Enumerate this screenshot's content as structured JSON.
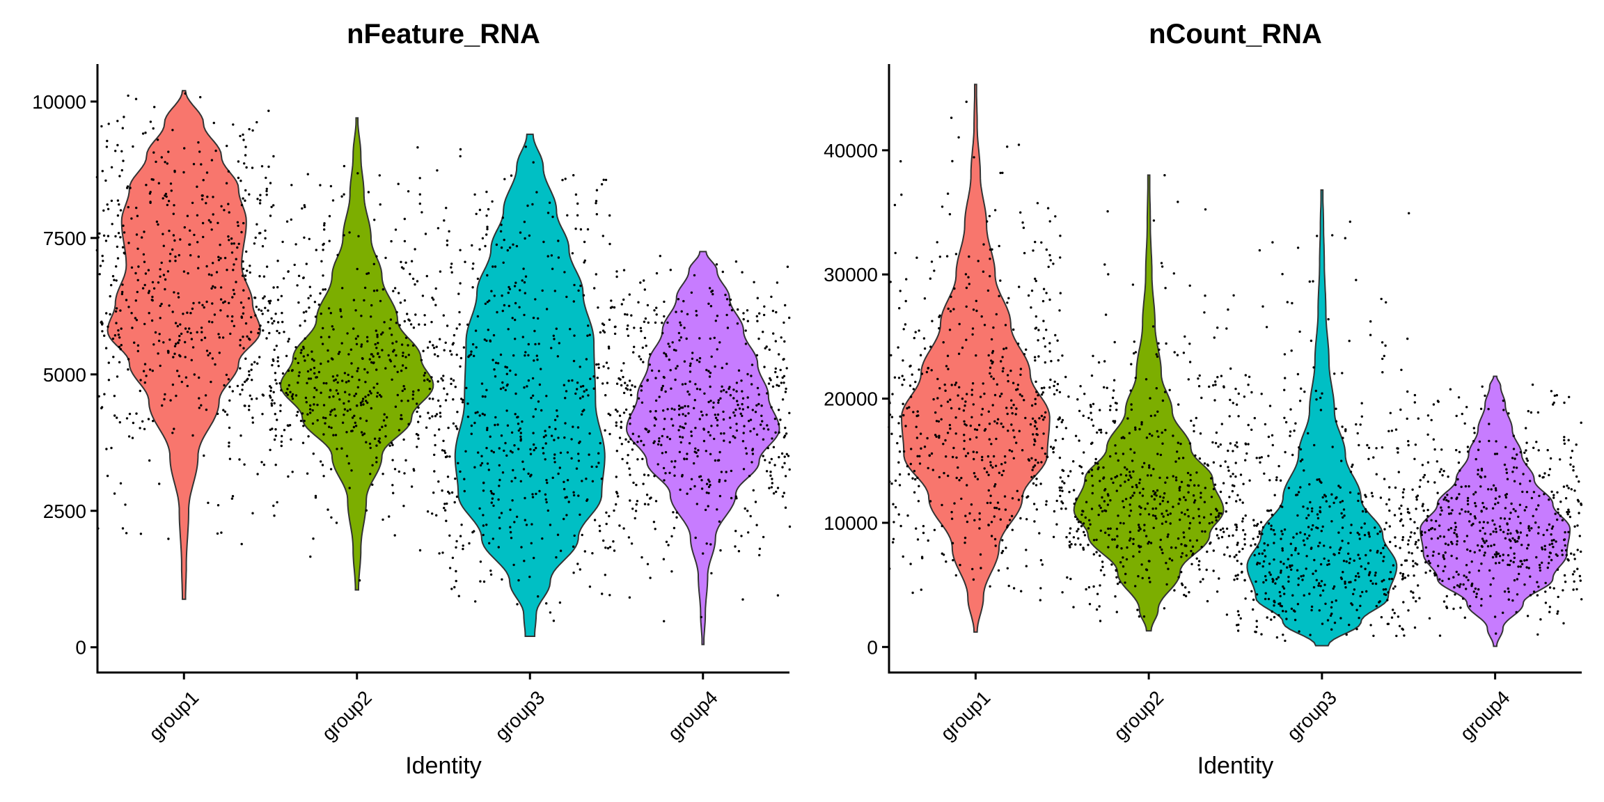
{
  "chart_data": [
    {
      "type": "violin",
      "title": "nFeature_RNA",
      "xlabel": "Identity",
      "ylabel": "",
      "categories": [
        "group1",
        "group2",
        "group3",
        "group4"
      ],
      "ylim": [
        -450,
        10700
      ],
      "yticks": [
        0,
        2500,
        5000,
        7500,
        10000
      ],
      "ytick_labels": [
        "0",
        "2500",
        "5000",
        "7500",
        "10000"
      ],
      "colors": [
        "#F8766D",
        "#7CAE00",
        "#00BFC4",
        "#C77CFF"
      ],
      "grid": false,
      "legend": "none",
      "series": [
        {
          "category": "group1",
          "min": 880,
          "max": 10200,
          "density": [
            [
              880,
              0.02
            ],
            [
              1500,
              0.03
            ],
            [
              2500,
              0.06
            ],
            [
              3500,
              0.18
            ],
            [
              4500,
              0.45
            ],
            [
              5200,
              0.7
            ],
            [
              5800,
              0.98
            ],
            [
              6300,
              0.88
            ],
            [
              7000,
              0.74
            ],
            [
              7800,
              0.8
            ],
            [
              8400,
              0.7
            ],
            [
              9000,
              0.48
            ],
            [
              9600,
              0.25
            ],
            [
              10200,
              0.02
            ]
          ]
        },
        {
          "category": "group2",
          "min": 1050,
          "max": 9700,
          "density": [
            [
              1050,
              0.02
            ],
            [
              1800,
              0.05
            ],
            [
              2700,
              0.12
            ],
            [
              3500,
              0.32
            ],
            [
              4200,
              0.7
            ],
            [
              4800,
              0.98
            ],
            [
              5300,
              0.82
            ],
            [
              6000,
              0.52
            ],
            [
              6800,
              0.32
            ],
            [
              7500,
              0.18
            ],
            [
              8300,
              0.09
            ],
            [
              9000,
              0.05
            ],
            [
              9700,
              0.01
            ]
          ]
        },
        {
          "category": "group3",
          "min": 200,
          "max": 9400,
          "density": [
            [
              200,
              0.06
            ],
            [
              600,
              0.08
            ],
            [
              1200,
              0.26
            ],
            [
              2000,
              0.62
            ],
            [
              2800,
              0.92
            ],
            [
              3500,
              0.96
            ],
            [
              4500,
              0.84
            ],
            [
              5600,
              0.82
            ],
            [
              6500,
              0.68
            ],
            [
              7300,
              0.5
            ],
            [
              8000,
              0.34
            ],
            [
              8800,
              0.17
            ],
            [
              9400,
              0.04
            ]
          ]
        },
        {
          "category": "group4",
          "min": 50,
          "max": 7250,
          "density": [
            [
              50,
              0.01
            ],
            [
              600,
              0.03
            ],
            [
              1300,
              0.06
            ],
            [
              2000,
              0.16
            ],
            [
              2800,
              0.42
            ],
            [
              3400,
              0.72
            ],
            [
              4000,
              0.98
            ],
            [
              4600,
              0.84
            ],
            [
              5200,
              0.7
            ],
            [
              5800,
              0.52
            ],
            [
              6400,
              0.34
            ],
            [
              6900,
              0.18
            ],
            [
              7250,
              0.04
            ]
          ]
        }
      ]
    },
    {
      "type": "violin",
      "title": "nCount_RNA",
      "xlabel": "Identity",
      "ylabel": "",
      "categories": [
        "group1",
        "group2",
        "group3",
        "group4"
      ],
      "ylim": [
        -2000,
        47000
      ],
      "yticks": [
        0,
        10000,
        20000,
        30000,
        40000
      ],
      "ytick_labels": [
        "0",
        "10000",
        "20000",
        "30000",
        "40000"
      ],
      "colors": [
        "#F8766D",
        "#7CAE00",
        "#00BFC4",
        "#C77CFF"
      ],
      "grid": false,
      "legend": "none",
      "series": [
        {
          "category": "group1",
          "min": 1200,
          "max": 45300,
          "density": [
            [
              1200,
              0.02
            ],
            [
              4000,
              0.1
            ],
            [
              8000,
              0.3
            ],
            [
              12000,
              0.6
            ],
            [
              15500,
              0.92
            ],
            [
              18500,
              0.95
            ],
            [
              22000,
              0.7
            ],
            [
              26000,
              0.45
            ],
            [
              30000,
              0.25
            ],
            [
              34000,
              0.14
            ],
            [
              38000,
              0.06
            ],
            [
              42000,
              0.02
            ],
            [
              45300,
              0.01
            ]
          ]
        },
        {
          "category": "group2",
          "min": 1300,
          "max": 38000,
          "density": [
            [
              1300,
              0.03
            ],
            [
              3000,
              0.12
            ],
            [
              6000,
              0.4
            ],
            [
              9000,
              0.78
            ],
            [
              11000,
              0.96
            ],
            [
              13500,
              0.82
            ],
            [
              16000,
              0.54
            ],
            [
              19000,
              0.3
            ],
            [
              22000,
              0.16
            ],
            [
              26000,
              0.08
            ],
            [
              30000,
              0.04
            ],
            [
              34000,
              0.02
            ],
            [
              38000,
              0.01
            ]
          ]
        },
        {
          "category": "group3",
          "min": 100,
          "max": 36800,
          "density": [
            [
              100,
              0.08
            ],
            [
              2000,
              0.5
            ],
            [
              4000,
              0.85
            ],
            [
              6500,
              0.96
            ],
            [
              9000,
              0.78
            ],
            [
              12000,
              0.5
            ],
            [
              15500,
              0.3
            ],
            [
              19000,
              0.16
            ],
            [
              23000,
              0.09
            ],
            [
              27000,
              0.05
            ],
            [
              31000,
              0.03
            ],
            [
              34000,
              0.02
            ],
            [
              36800,
              0.01
            ]
          ]
        },
        {
          "category": "group4",
          "min": 50,
          "max": 21800,
          "density": [
            [
              50,
              0.02
            ],
            [
              1500,
              0.1
            ],
            [
              3500,
              0.36
            ],
            [
              5500,
              0.74
            ],
            [
              7500,
              0.92
            ],
            [
              9500,
              0.96
            ],
            [
              11500,
              0.74
            ],
            [
              13500,
              0.5
            ],
            [
              15500,
              0.34
            ],
            [
              17500,
              0.22
            ],
            [
              19500,
              0.13
            ],
            [
              21000,
              0.07
            ],
            [
              21800,
              0.02
            ]
          ]
        }
      ]
    }
  ]
}
